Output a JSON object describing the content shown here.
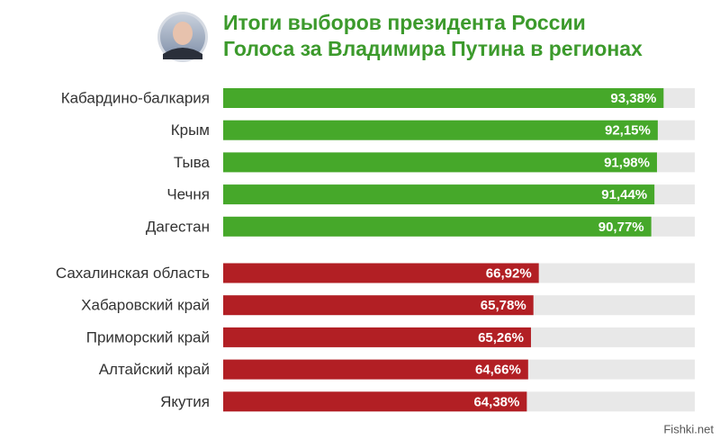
{
  "chart_data": {
    "type": "bar",
    "title": "Итоги выборов президента России",
    "subtitle": "Голоса за Владимира Путина в регионах",
    "categories": [
      "Кабардино-балкария",
      "Крым",
      "Тыва",
      "Чечня",
      "Дагестан",
      "Сахалинская область",
      "Хабаровский край",
      "Приморский край",
      "Алтайский край",
      "Якутия"
    ],
    "values": [
      93.38,
      92.15,
      91.98,
      91.44,
      90.77,
      66.92,
      65.78,
      65.26,
      64.66,
      64.38
    ],
    "value_labels": [
      "93,38%",
      "92,15%",
      "91,98%",
      "91,44%",
      "90,77%",
      "66,92%",
      "65,78%",
      "65,26%",
      "64,66%",
      "64,38%"
    ],
    "colors": [
      "#46a82a",
      "#46a82a",
      "#46a82a",
      "#46a82a",
      "#46a82a",
      "#b21f24",
      "#b21f24",
      "#b21f24",
      "#b21f24",
      "#b21f24"
    ],
    "xlim": [
      0,
      100
    ],
    "watermark": "Fishki.net"
  }
}
